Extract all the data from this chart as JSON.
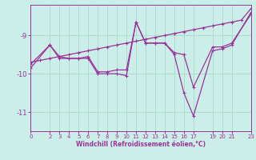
{
  "xlabel": "Windchill (Refroidissement éolien,°C)",
  "background_color": "#cceee8",
  "grid_color": "#aaddcc",
  "line_color": "#993399",
  "xlim": [
    0,
    23
  ],
  "ylim": [
    -11.5,
    -8.2
  ],
  "yticks": [
    -11,
    -10,
    -9
  ],
  "xticks": [
    0,
    2,
    3,
    4,
    5,
    6,
    7,
    8,
    9,
    10,
    11,
    12,
    13,
    14,
    15,
    16,
    17,
    19,
    20,
    21,
    23
  ],
  "series1_x": [
    0,
    1,
    2,
    3,
    4,
    5,
    6,
    7,
    8,
    9,
    10,
    11,
    12,
    13,
    14,
    15,
    16,
    17,
    18,
    19,
    20,
    21,
    22,
    23
  ],
  "series1_y": [
    -9.7,
    -9.65,
    -9.6,
    -9.55,
    -9.5,
    -9.45,
    -9.4,
    -9.35,
    -9.3,
    -9.25,
    -9.2,
    -9.15,
    -9.1,
    -9.05,
    -9.0,
    -8.95,
    -8.9,
    -8.85,
    -8.8,
    -8.75,
    -8.7,
    -8.65,
    -8.6,
    -8.3
  ],
  "series2_x": [
    0,
    2,
    3,
    4,
    5,
    6,
    7,
    8,
    9,
    10,
    11,
    12,
    13,
    14,
    15,
    16,
    17,
    19,
    20,
    21,
    23
  ],
  "series2_y": [
    -9.75,
    -9.25,
    -9.6,
    -9.6,
    -9.6,
    -9.55,
    -9.95,
    -9.95,
    -9.9,
    -9.9,
    -8.65,
    -9.2,
    -9.2,
    -9.2,
    -9.45,
    -9.5,
    -10.35,
    -9.3,
    -9.3,
    -9.2,
    -8.45
  ],
  "series3_x": [
    0,
    2,
    3,
    4,
    5,
    6,
    7,
    8,
    9,
    10,
    11,
    12,
    13,
    14,
    15,
    16,
    17,
    19,
    20,
    21,
    23
  ],
  "series3_y": [
    -9.85,
    -9.25,
    -9.55,
    -9.6,
    -9.6,
    -9.6,
    -10.0,
    -10.0,
    -10.0,
    -10.05,
    -8.65,
    -9.2,
    -9.2,
    -9.2,
    -9.5,
    -10.5,
    -11.1,
    -9.4,
    -9.35,
    -9.25,
    -8.4
  ]
}
